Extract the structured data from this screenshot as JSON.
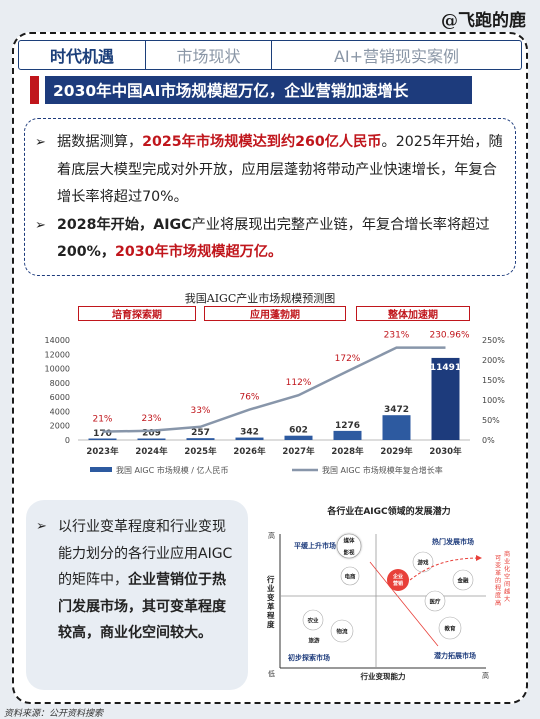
{
  "watermark": "@飞跑的鹿",
  "tabs": [
    {
      "label": "时代机遇",
      "active": true
    },
    {
      "label": "市场现状",
      "active": false
    },
    {
      "label": "AI+营销现实案例",
      "active": false
    }
  ],
  "headline": "2030年中国AI市场规模超万亿，企业营销加速增长",
  "bullets": {
    "p1": {
      "pre": "据数据测算，",
      "highlight": "2025年市场规模达到约260亿人民币",
      "post": "。2025年开始，随着底层大模型完成对外开放，应用层蓬勃将带动产业快速增长，年复合增长率将超过70%。"
    },
    "p2": {
      "bold_a": "2028年开始，AIGC",
      "mid": "产业将展现出完整产业链，年复合增长率将超过",
      "bold_b": "200%，",
      "highlight": "2030年市场规模超万亿。"
    }
  },
  "chart_data": {
    "type": "bar",
    "title": "我国AIGC产业市场规模预测图",
    "phases": [
      "培育探索期",
      "应用蓬勃期",
      "整体加速期"
    ],
    "categories": [
      "2023年",
      "2024年",
      "2025年",
      "2026年",
      "2027年",
      "2028年",
      "2029年",
      "2030年"
    ],
    "series": [
      {
        "name": "我国 AIGC 市场规模 / 亿人民币",
        "type": "bar",
        "values": [
          170,
          209,
          257,
          342,
          602,
          1276,
          3472,
          11491
        ]
      },
      {
        "name": "我国 AIGC 市场规模年复合增长率",
        "type": "line",
        "values": [
          21,
          23,
          33,
          76,
          112,
          172,
          231,
          230.96
        ]
      }
    ],
    "growth_labels": [
      "21%",
      "23%",
      "33%",
      "76%",
      "112%",
      "172%",
      "231%",
      "230.96%"
    ],
    "value_labels": [
      "170",
      "209",
      "257",
      "342",
      "602",
      "1276",
      "3472",
      "11491"
    ],
    "y_left_ticks": [
      "0",
      "2000",
      "4000",
      "6000",
      "8000",
      "10000",
      "12000",
      "14000"
    ],
    "y_right_ticks": [
      "0%",
      "50%",
      "100%",
      "150%",
      "200%",
      "250%"
    ],
    "ylim_left": [
      0,
      14000
    ],
    "ylim_right": [
      0,
      250
    ],
    "colors": {
      "bar": "#2d5aa0",
      "bar_last": "#1d3b7c",
      "line": "#8896aa",
      "growth_label": "#c0161c"
    },
    "legend_position": "bottom"
  },
  "bottom_text": {
    "pre": "以行业变革程度和行业变现能力划分的各行业应用AIGC的矩阵中，",
    "bold": "企业营销位于热门发展市场，其可变革程度较高，商业化空间较大。"
  },
  "matrix": {
    "title": "各行业在AIGC领域的发展潜力",
    "y_axis": "行业变革程度",
    "x_axis": "行业变现能力",
    "high": "高",
    "low": "低",
    "quadrants": [
      "平缓上升市场",
      "热门发展市场",
      "初步探索市场",
      "潜力拓展市场"
    ],
    "industries": [
      "媒体",
      "影视",
      "电商",
      "企业营销",
      "游戏",
      "金融",
      "医疗",
      "教育",
      "农业",
      "物流",
      "旅游"
    ],
    "annotation": "商业化空间越大，可变革的程度高",
    "colors": {
      "quadrant_text": "#1d3b7c",
      "accent": "#e8403a"
    }
  },
  "source": "资料来源：公开资料搜索"
}
